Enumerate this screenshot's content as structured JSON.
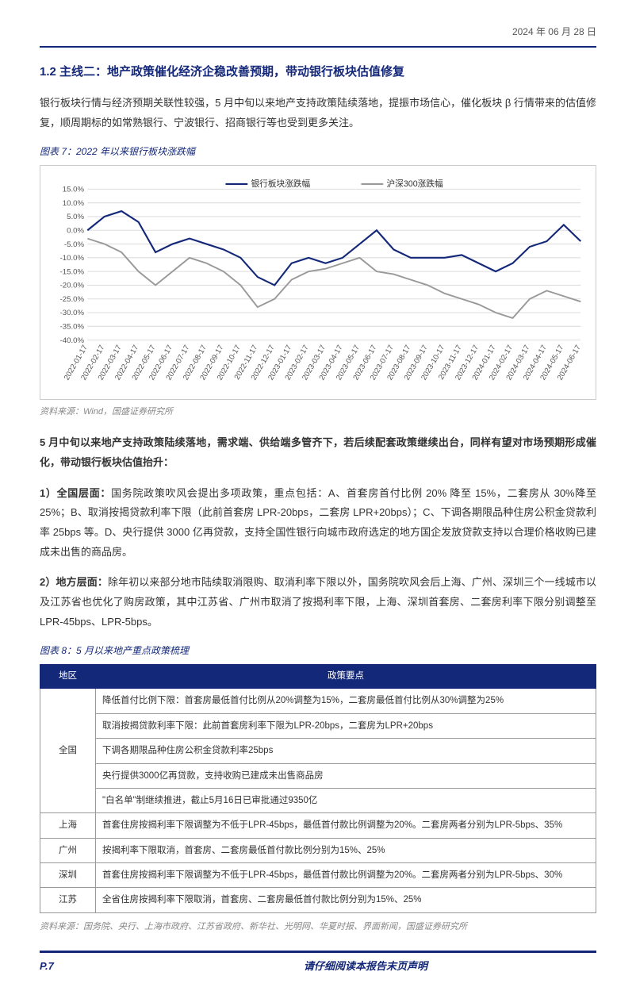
{
  "header": {
    "date": "2024 年 06 月 28 日"
  },
  "section": {
    "title": "1.2 主线二：地产政策催化经济企稳改善预期，带动银行板块估值修复",
    "intro": "银行板块行情与经济预期关联性较强，5 月中旬以来地产支持政策陆续落地，提振市场信心，催化板块 β 行情带来的估值修复，顺周期标的如常熟银行、宁波银行、招商银行等也受到更多关注。"
  },
  "chart7": {
    "title": "图表 7：2022 年以来银行板块涨跌幅",
    "source": "资料来源：Wind，国盛证券研究所",
    "type": "line",
    "legend": [
      "银行板块涨跌幅",
      "沪深300涨跌幅"
    ],
    "legend_colors": [
      "#14287a",
      "#999999"
    ],
    "yticks": [
      "15.0%",
      "10.0%",
      "5.0%",
      "0.0%",
      "-5.0%",
      "-10.0%",
      "-15.0%",
      "-20.0%",
      "-25.0%",
      "-30.0%",
      "-35.0%",
      "-40.0%"
    ],
    "ylim": [
      -40,
      15
    ],
    "xticks": [
      "2022-01-17",
      "2022-02-17",
      "2022-03-17",
      "2022-04-17",
      "2022-05-17",
      "2022-06-17",
      "2022-07-17",
      "2022-08-17",
      "2022-09-17",
      "2022-10-17",
      "2022-11-17",
      "2022-12-17",
      "2023-01-17",
      "2023-02-17",
      "2023-03-17",
      "2023-04-17",
      "2023-05-17",
      "2023-06-17",
      "2023-07-17",
      "2023-08-17",
      "2023-09-17",
      "2023-10-17",
      "2023-11-17",
      "2023-12-17",
      "2024-01-17",
      "2024-02-17",
      "2024-03-17",
      "2024-04-17",
      "2024-05-17",
      "2024-06-17"
    ],
    "bank_series": [
      0,
      5,
      7,
      3,
      -8,
      -5,
      -3,
      -5,
      -7,
      -10,
      -17,
      -20,
      -12,
      -10,
      -12,
      -10,
      -5,
      0,
      -7,
      -10,
      -10,
      -10,
      -9,
      -12,
      -15,
      -12,
      -6,
      -4,
      2,
      -4
    ],
    "csi_series": [
      -3,
      -5,
      -8,
      -15,
      -20,
      -15,
      -10,
      -12,
      -15,
      -20,
      -28,
      -25,
      -18,
      -15,
      -14,
      -12,
      -10,
      -15,
      -16,
      -18,
      -20,
      -23,
      -25,
      -27,
      -30,
      -32,
      -25,
      -22,
      -24,
      -26
    ],
    "background_color": "#ffffff",
    "grid_color": "#dddddd",
    "axis_fontsize": 9
  },
  "mid_text": {
    "p1": "5 月中旬以来地产支持政策陆续落地，需求端、供给端多管齐下，若后续配套政策继续出台，同样有望对市场预期形成催化，带动银行板块估值抬升：",
    "p2_label": "1）全国层面：",
    "p2": "国务院政策吹风会提出多项政策，重点包括：A、首套房首付比例 20% 降至 15%，二套房从 30%降至 25%；B、取消按揭贷款利率下限（此前首套房 LPR-20bps，二套房 LPR+20bps）；C、下调各期限品种住房公积金贷款利率 25bps 等。D、央行提供 3000 亿再贷款，支持全国性银行向城市政府选定的地方国企发放贷款支持以合理价格收购已建成未出售的商品房。",
    "p3_label": "2）地方层面：",
    "p3": "除年初以来部分地市陆续取消限购、取消利率下限以外，国务院吹风会后上海、广州、深圳三个一线城市以及江苏省也优化了购房政策，其中江苏省、广州市取消了按揭利率下限，上海、深圳首套房、二套房利率下限分别调整至 LPR-45bps、LPR-5bps。"
  },
  "table8": {
    "title": "图表 8：5 月以来地产重点政策梳理",
    "columns": [
      "地区",
      "政策要点"
    ],
    "rows": [
      {
        "region": "全国",
        "points": [
          "降低首付比例下限：首套房最低首付比例从20%调整为15%，二套房最低首付比例从30%调整为25%",
          "取消按揭贷款利率下限：此前首套房利率下限为LPR-20bps，二套房为LPR+20bps",
          "下调各期限品种住房公积金贷款利率25bps",
          "央行提供3000亿再贷款，支持收购已建成未出售商品房",
          "\"白名单\"制继续推进，截止5月16日已审批通过9350亿"
        ]
      },
      {
        "region": "上海",
        "points": [
          "首套住房按揭利率下限调整为不低于LPR-45bps，最低首付款比例调整为20%。二套房两者分别为LPR-5bps、35%"
        ]
      },
      {
        "region": "广州",
        "points": [
          "按揭利率下限取消，首套房、二套房最低首付款比例分别为15%、25%"
        ]
      },
      {
        "region": "深圳",
        "points": [
          "首套住房按揭利率下限调整为不低于LPR-45bps，最低首付款比例调整为20%。二套房两者分别为LPR-5bps、30%"
        ]
      },
      {
        "region": "江苏",
        "points": [
          "全省住房按揭利率下限取消，首套房、二套房最低首付款比例分别为15%、25%"
        ]
      }
    ],
    "source": "资料来源：国务院、央行、上海市政府、江苏省政府、新华社、光明网、华夏时报、界面新闻，国盛证券研究所"
  },
  "footer": {
    "page": "P.7",
    "disclaimer": "请仔细阅读本报告末页声明"
  }
}
